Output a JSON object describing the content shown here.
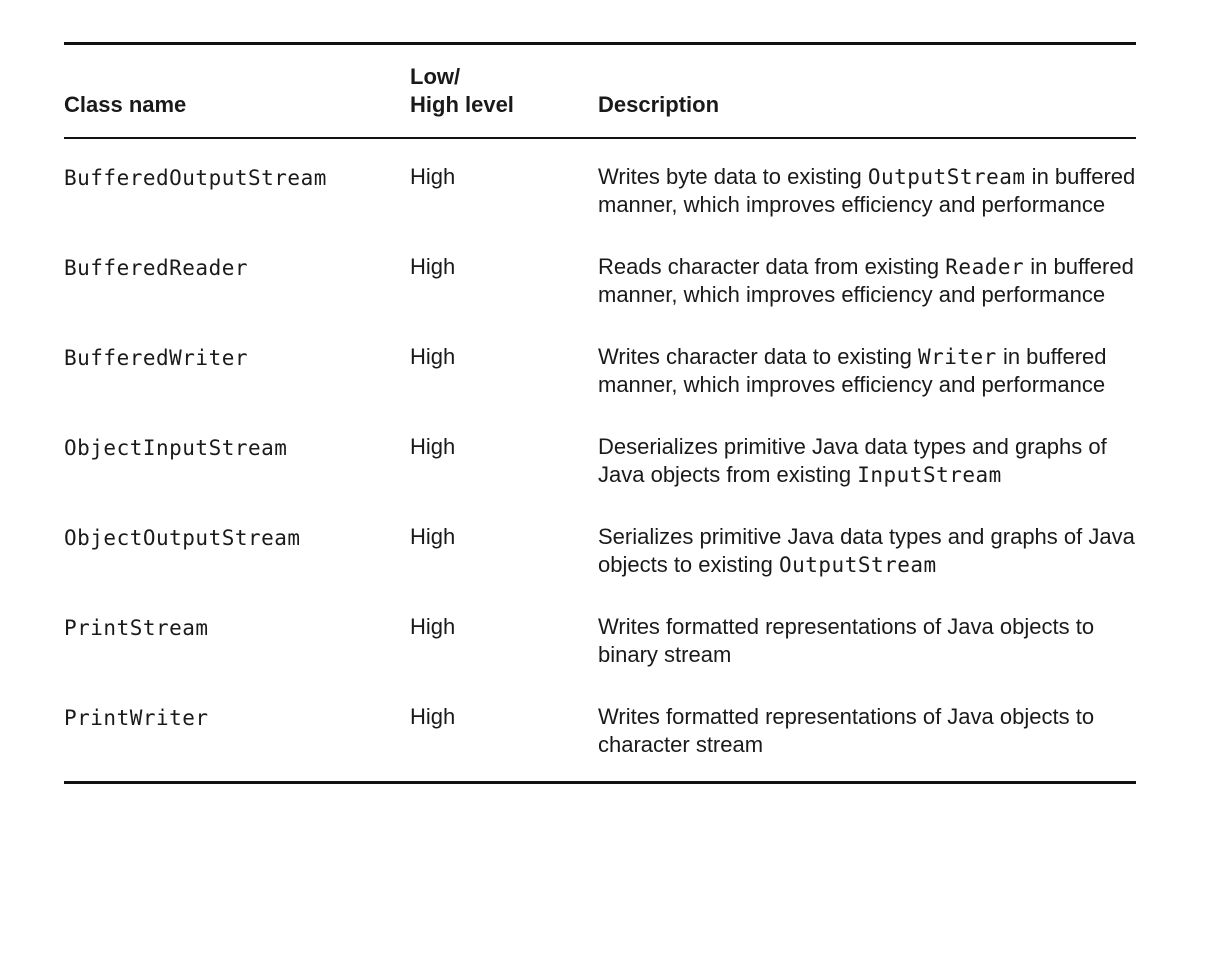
{
  "table": {
    "headers": {
      "class_name": "Class name",
      "level_line1": "Low/",
      "level_line2": "High level",
      "description": "Description"
    },
    "rows": [
      {
        "class_name": "BufferedOutputStream",
        "level": "High",
        "description": [
          {
            "text": "Writes byte data to existing ",
            "code": false
          },
          {
            "text": "OutputStream",
            "code": true
          },
          {
            "text": " in buffered manner, which improves efficiency and performance",
            "code": false
          }
        ]
      },
      {
        "class_name": "BufferedReader",
        "level": "High",
        "description": [
          {
            "text": "Reads character data from existing ",
            "code": false
          },
          {
            "text": "Reader",
            "code": true
          },
          {
            "text": " in buffered manner, which improves efficiency and performance",
            "code": false
          }
        ]
      },
      {
        "class_name": "BufferedWriter",
        "level": "High",
        "description": [
          {
            "text": "Writes character data to existing ",
            "code": false
          },
          {
            "text": "Writer",
            "code": true
          },
          {
            "text": " in buffered manner, which improves efficiency and performance",
            "code": false
          }
        ]
      },
      {
        "class_name": "ObjectInputStream",
        "level": "High",
        "description": [
          {
            "text": "Deserializes primitive Java data types and graphs of Java objects from existing ",
            "code": false
          },
          {
            "text": "InputStream",
            "code": true
          }
        ]
      },
      {
        "class_name": "ObjectOutputStream",
        "level": "High",
        "description": [
          {
            "text": "Serializes primitive Java data types and graphs of Java objects to existing ",
            "code": false
          },
          {
            "text": "OutputStream",
            "code": true
          }
        ]
      },
      {
        "class_name": "PrintStream",
        "level": "High",
        "description": [
          {
            "text": "Writes formatted representations of Java objects to binary stream",
            "code": false
          }
        ]
      },
      {
        "class_name": "PrintWriter",
        "level": "High",
        "description": [
          {
            "text": "Writes formatted representations of Java objects to character stream",
            "code": false
          }
        ]
      }
    ]
  }
}
